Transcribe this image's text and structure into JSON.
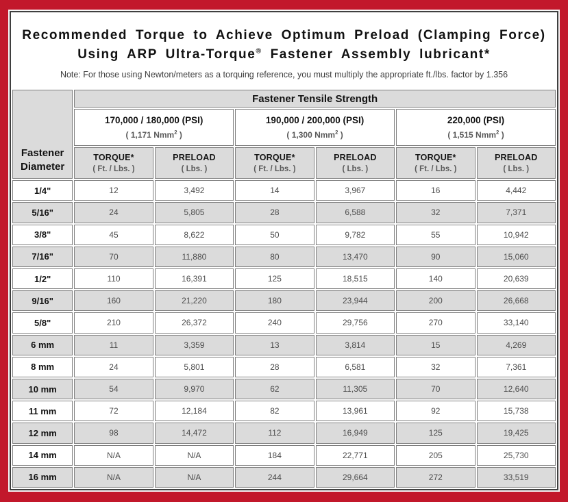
{
  "title": {
    "line1": "Recommended Torque to Achieve Optimum Preload (Clamping Force)",
    "line2_pre": "Using ARP Ultra-Torque",
    "line2_sup": "®",
    "line2_post": " Fastener Assembly lubricant*"
  },
  "note": "Note: For those using Newton/meters as a torquing reference, you must multiply the appropriate ft./lbs. factor by 1.356",
  "colors": {
    "frame_red": "#c2182b",
    "header_gray": "#dbdbdb",
    "cell_border": "#7f7f7f",
    "page_border": "#3f3f3f"
  },
  "table": {
    "tensile_header": "Fastener Tensile Strength",
    "diameter_header_line1": "Fastener",
    "diameter_header_line2": "Diameter",
    "groups": [
      {
        "psi": "170,000 / 180,000 (PSI)",
        "nmm_pre": "( 1,171 Nmm",
        "nmm_sup": "2",
        "nmm_post": " )"
      },
      {
        "psi": "190,000 / 200,000 (PSI)",
        "nmm_pre": "( 1,300 Nmm",
        "nmm_sup": "2",
        "nmm_post": " )"
      },
      {
        "psi": "220,000 (PSI)",
        "nmm_pre": "( 1,515 Nmm",
        "nmm_sup": "2",
        "nmm_post": " )"
      }
    ],
    "subheaders": {
      "torque": "TORQUE*",
      "torque_unit": "( Ft. / Lbs. )",
      "preload": "PRELOAD",
      "preload_unit": "( Lbs. )"
    },
    "rows": [
      {
        "diameter": "1/4\"",
        "values": [
          "12",
          "3,492",
          "14",
          "3,967",
          "16",
          "4,442"
        ]
      },
      {
        "diameter": "5/16\"",
        "values": [
          "24",
          "5,805",
          "28",
          "6,588",
          "32",
          "7,371"
        ]
      },
      {
        "diameter": "3/8\"",
        "values": [
          "45",
          "8,622",
          "50",
          "9,782",
          "55",
          "10,942"
        ]
      },
      {
        "diameter": "7/16\"",
        "values": [
          "70",
          "11,880",
          "80",
          "13,470",
          "90",
          "15,060"
        ]
      },
      {
        "diameter": "1/2\"",
        "values": [
          "110",
          "16,391",
          "125",
          "18,515",
          "140",
          "20,639"
        ]
      },
      {
        "diameter": "9/16\"",
        "values": [
          "160",
          "21,220",
          "180",
          "23,944",
          "200",
          "26,668"
        ]
      },
      {
        "diameter": "5/8\"",
        "values": [
          "210",
          "26,372",
          "240",
          "29,756",
          "270",
          "33,140"
        ]
      },
      {
        "diameter": "6 mm",
        "values": [
          "11",
          "3,359",
          "13",
          "3,814",
          "15",
          "4,269"
        ]
      },
      {
        "diameter": "8 mm",
        "values": [
          "24",
          "5,801",
          "28",
          "6,581",
          "32",
          "7,361"
        ]
      },
      {
        "diameter": "10 mm",
        "values": [
          "54",
          "9,970",
          "62",
          "11,305",
          "70",
          "12,640"
        ]
      },
      {
        "diameter": "11 mm",
        "values": [
          "72",
          "12,184",
          "82",
          "13,961",
          "92",
          "15,738"
        ]
      },
      {
        "diameter": "12 mm",
        "values": [
          "98",
          "14,472",
          "112",
          "16,949",
          "125",
          "19,425"
        ]
      },
      {
        "diameter": "14 mm",
        "values": [
          "N/A",
          "N/A",
          "184",
          "22,771",
          "205",
          "25,730"
        ]
      },
      {
        "diameter": "16 mm",
        "values": [
          "N/A",
          "N/A",
          "244",
          "29,664",
          "272",
          "33,519"
        ]
      }
    ]
  }
}
